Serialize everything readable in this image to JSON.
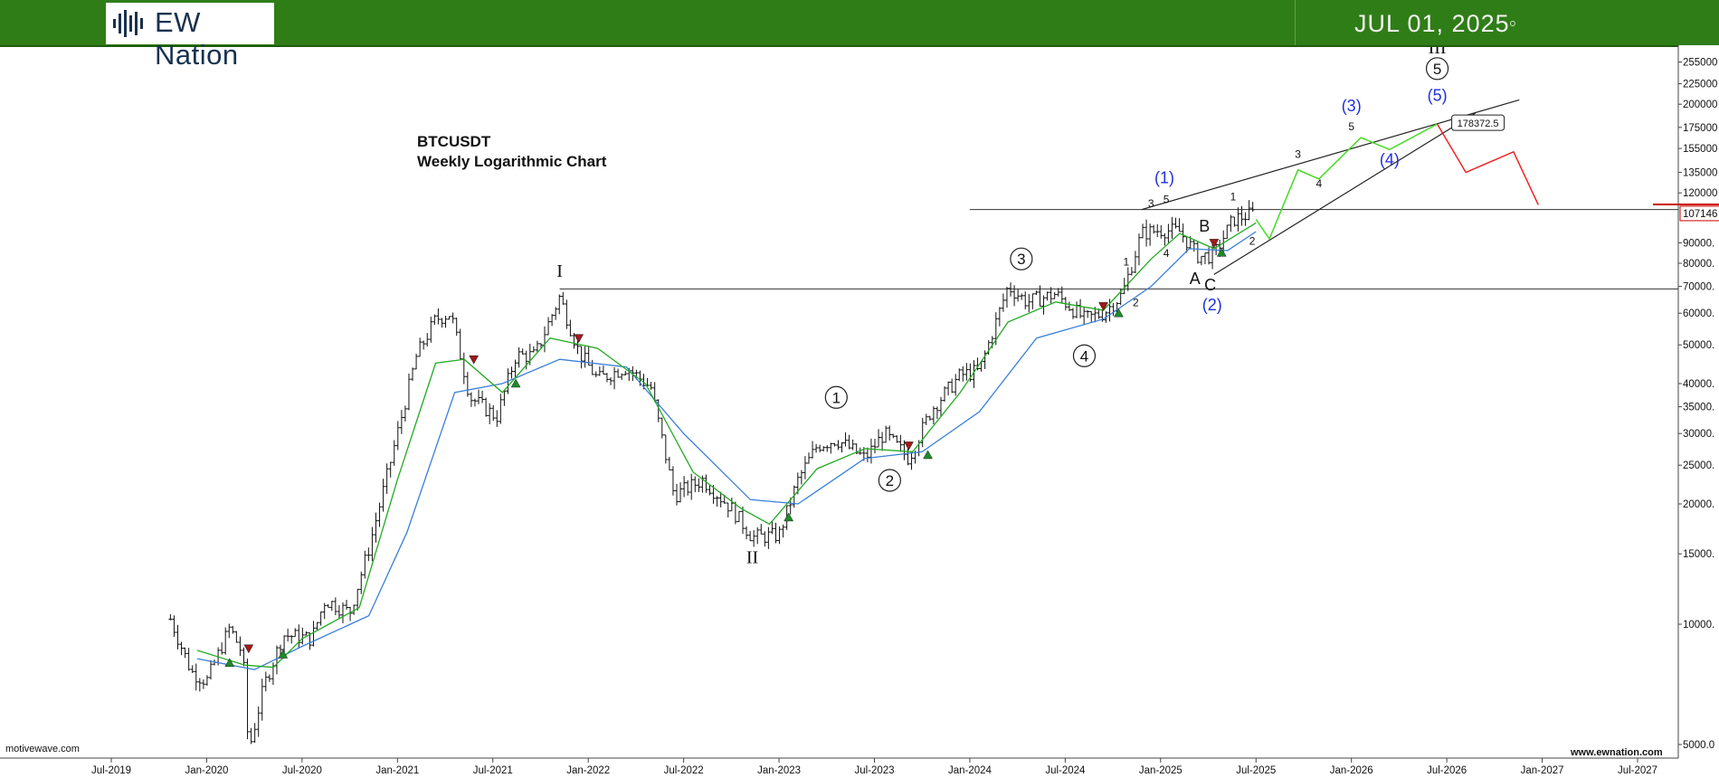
{
  "header": {
    "logo_text": "EW Nation",
    "date": "JUL 01, 2025"
  },
  "title_lines": [
    "BTCUSDT",
    "Weekly Logarithmic Chart"
  ],
  "footer": {
    "left": "motivewave.com",
    "right": "www.ewnation.com"
  },
  "colors": {
    "header_bg": "#2f7d17",
    "ema_fast": "#22aa22",
    "ema_slow": "#3a7fd9",
    "bull_projection": "#44dd22",
    "bear_projection": "#ee2222",
    "wave_label_blue": "#1f2fdc",
    "price_marker": "#cc0000"
  },
  "chart_data": {
    "type": "candlestick",
    "symbol": "BTCUSDT",
    "scale": "log",
    "x_tick_labels": [
      "Jul-2019",
      "Jan-2020",
      "Jul-2020",
      "Jan-2021",
      "Jul-2021",
      "Jan-2022",
      "Jul-2022",
      "Jan-2023",
      "Jul-2023",
      "Jan-2024",
      "Jul-2024",
      "Jan-2025",
      "Jul-2025",
      "Jan-2026",
      "Jul-2026",
      "Jan-2027",
      "Jul-2027"
    ],
    "y_tick_labels": [
      {
        "label": "5000.0",
        "value": 5000
      },
      {
        "label": "10000.",
        "value": 10000
      },
      {
        "label": "15000.",
        "value": 15000
      },
      {
        "label": "20000.",
        "value": 20000
      },
      {
        "label": "25000.",
        "value": 25000
      },
      {
        "label": "30000.",
        "value": 30000
      },
      {
        "label": "35000.",
        "value": 35000
      },
      {
        "label": "40000.",
        "value": 40000
      },
      {
        "label": "50000.",
        "value": 50000
      },
      {
        "label": "60000.",
        "value": 60000
      },
      {
        "label": "70000.",
        "value": 70000
      },
      {
        "label": "80000.",
        "value": 80000
      },
      {
        "label": "90000.",
        "value": 90000
      },
      {
        "label": "120000",
        "value": 120000
      },
      {
        "label": "135000",
        "value": 135000
      },
      {
        "label": "155000",
        "value": 155000
      },
      {
        "label": "175000",
        "value": 175000
      },
      {
        "label": "200000",
        "value": 200000
      },
      {
        "label": "225000",
        "value": 225000
      },
      {
        "label": "255000",
        "value": 255000
      }
    ],
    "current_price_label": "107146",
    "current_price": 107146,
    "target_label": "178372.5",
    "target_value": 178372.5,
    "price_path": [
      {
        "t": 2019.81,
        "p": 10300
      },
      {
        "t": 2019.92,
        "p": 7600
      },
      {
        "t": 2020.0,
        "p": 7200
      },
      {
        "t": 2020.12,
        "p": 9800
      },
      {
        "t": 2020.19,
        "p": 8400
      },
      {
        "t": 2020.22,
        "p": 4800
      },
      {
        "t": 2020.3,
        "p": 7000
      },
      {
        "t": 2020.4,
        "p": 9400
      },
      {
        "t": 2020.55,
        "p": 9200
      },
      {
        "t": 2020.62,
        "p": 11500
      },
      {
        "t": 2020.75,
        "p": 10700
      },
      {
        "t": 2020.85,
        "p": 15500
      },
      {
        "t": 2020.95,
        "p": 24000
      },
      {
        "t": 2021.1,
        "p": 47000
      },
      {
        "t": 2021.2,
        "p": 58000
      },
      {
        "t": 2021.28,
        "p": 60000
      },
      {
        "t": 2021.38,
        "p": 37000
      },
      {
        "t": 2021.52,
        "p": 33000
      },
      {
        "t": 2021.62,
        "p": 47000
      },
      {
        "t": 2021.72,
        "p": 47000
      },
      {
        "t": 2021.85,
        "p": 66000
      },
      {
        "t": 2021.95,
        "p": 48000
      },
      {
        "t": 2022.05,
        "p": 41000
      },
      {
        "t": 2022.2,
        "p": 44000
      },
      {
        "t": 2022.33,
        "p": 39000
      },
      {
        "t": 2022.45,
        "p": 21000
      },
      {
        "t": 2022.6,
        "p": 23000
      },
      {
        "t": 2022.75,
        "p": 19500
      },
      {
        "t": 2022.86,
        "p": 16500
      },
      {
        "t": 2023.0,
        "p": 16700
      },
      {
        "t": 2023.1,
        "p": 23000
      },
      {
        "t": 2023.2,
        "p": 28000
      },
      {
        "t": 2023.3,
        "p": 29000
      },
      {
        "t": 2023.45,
        "p": 26000
      },
      {
        "t": 2023.55,
        "p": 30000
      },
      {
        "t": 2023.68,
        "p": 26000
      },
      {
        "t": 2023.8,
        "p": 34500
      },
      {
        "t": 2023.95,
        "p": 42000
      },
      {
        "t": 2024.05,
        "p": 43000
      },
      {
        "t": 2024.2,
        "p": 70000
      },
      {
        "t": 2024.3,
        "p": 64000
      },
      {
        "t": 2024.45,
        "p": 67000
      },
      {
        "t": 2024.6,
        "p": 58000
      },
      {
        "t": 2024.7,
        "p": 60000
      },
      {
        "t": 2024.8,
        "p": 67000
      },
      {
        "t": 2024.9,
        "p": 95000
      },
      {
        "t": 2025.0,
        "p": 97000
      },
      {
        "t": 2025.1,
        "p": 96000
      },
      {
        "t": 2025.2,
        "p": 83000
      },
      {
        "t": 2025.28,
        "p": 84000
      },
      {
        "t": 2025.38,
        "p": 103000
      },
      {
        "t": 2025.5,
        "p": 107146
      }
    ],
    "ema_fast": [
      {
        "t": 2019.95,
        "p": 8600
      },
      {
        "t": 2020.2,
        "p": 7900
      },
      {
        "t": 2020.35,
        "p": 7800
      },
      {
        "t": 2020.5,
        "p": 9200
      },
      {
        "t": 2020.8,
        "p": 11000
      },
      {
        "t": 2021.0,
        "p": 23000
      },
      {
        "t": 2021.2,
        "p": 45000
      },
      {
        "t": 2021.35,
        "p": 46000
      },
      {
        "t": 2021.55,
        "p": 38000
      },
      {
        "t": 2021.8,
        "p": 52000
      },
      {
        "t": 2022.05,
        "p": 49000
      },
      {
        "t": 2022.3,
        "p": 40000
      },
      {
        "t": 2022.55,
        "p": 24000
      },
      {
        "t": 2022.8,
        "p": 19500
      },
      {
        "t": 2022.95,
        "p": 17800
      },
      {
        "t": 2023.2,
        "p": 24500
      },
      {
        "t": 2023.45,
        "p": 27500
      },
      {
        "t": 2023.7,
        "p": 27000
      },
      {
        "t": 2023.95,
        "p": 38000
      },
      {
        "t": 2024.2,
        "p": 57000
      },
      {
        "t": 2024.45,
        "p": 64000
      },
      {
        "t": 2024.7,
        "p": 61000
      },
      {
        "t": 2024.95,
        "p": 82000
      },
      {
        "t": 2025.1,
        "p": 95000
      },
      {
        "t": 2025.28,
        "p": 87000
      },
      {
        "t": 2025.5,
        "p": 101000
      }
    ],
    "ema_slow": [
      {
        "t": 2019.95,
        "p": 8200
      },
      {
        "t": 2020.25,
        "p": 7700
      },
      {
        "t": 2020.5,
        "p": 8800
      },
      {
        "t": 2020.85,
        "p": 10500
      },
      {
        "t": 2021.05,
        "p": 17000
      },
      {
        "t": 2021.3,
        "p": 38000
      },
      {
        "t": 2021.55,
        "p": 40000
      },
      {
        "t": 2021.85,
        "p": 46000
      },
      {
        "t": 2022.2,
        "p": 44000
      },
      {
        "t": 2022.5,
        "p": 30000
      },
      {
        "t": 2022.85,
        "p": 20500
      },
      {
        "t": 2023.1,
        "p": 20000
      },
      {
        "t": 2023.45,
        "p": 26000
      },
      {
        "t": 2023.75,
        "p": 27000
      },
      {
        "t": 2024.05,
        "p": 34000
      },
      {
        "t": 2024.35,
        "p": 52000
      },
      {
        "t": 2024.7,
        "p": 58000
      },
      {
        "t": 2024.95,
        "p": 70000
      },
      {
        "t": 2025.15,
        "p": 87000
      },
      {
        "t": 2025.35,
        "p": 86000
      },
      {
        "t": 2025.5,
        "p": 96000
      }
    ],
    "bull_projection": [
      {
        "t": 2025.5,
        "p": 103000
      },
      {
        "t": 2025.57,
        "p": 92000
      },
      {
        "t": 2025.72,
        "p": 137000
      },
      {
        "t": 2025.83,
        "p": 130000
      },
      {
        "t": 2026.05,
        "p": 165000
      },
      {
        "t": 2026.2,
        "p": 154000
      },
      {
        "t": 2026.45,
        "p": 178372.5
      }
    ],
    "bear_projection": [
      {
        "t": 2026.45,
        "p": 178372.5
      },
      {
        "t": 2026.6,
        "p": 135000
      },
      {
        "t": 2026.85,
        "p": 152000
      },
      {
        "t": 2026.98,
        "p": 112000
      }
    ],
    "horizontal_levels": [
      69000,
      109000
    ],
    "channel_lines": [
      {
        "from": {
          "t": 2024.9,
          "p": 109000
        },
        "to": {
          "t": 2026.88,
          "p": 205000
        }
      },
      {
        "from": {
          "t": 2025.28,
          "p": 75000
        },
        "to": {
          "t": 2026.65,
          "p": 190000
        }
      }
    ],
    "triangle_markers": [
      {
        "t": 2020.12,
        "p": 8000,
        "dir": "up"
      },
      {
        "t": 2020.22,
        "p": 8700,
        "dir": "down"
      },
      {
        "t": 2020.4,
        "p": 8400,
        "dir": "up"
      },
      {
        "t": 2021.4,
        "p": 46000,
        "dir": "down"
      },
      {
        "t": 2021.62,
        "p": 40000,
        "dir": "up"
      },
      {
        "t": 2021.95,
        "p": 52000,
        "dir": "down"
      },
      {
        "t": 2023.05,
        "p": 18500,
        "dir": "up"
      },
      {
        "t": 2023.68,
        "p": 28000,
        "dir": "down"
      },
      {
        "t": 2023.78,
        "p": 26500,
        "dir": "up"
      },
      {
        "t": 2024.7,
        "p": 62500,
        "dir": "down"
      },
      {
        "t": 2024.78,
        "p": 60000,
        "dir": "up"
      },
      {
        "t": 2025.28,
        "p": 90000,
        "dir": "down"
      },
      {
        "t": 2025.32,
        "p": 85000,
        "dir": "up"
      }
    ],
    "wave_labels": [
      {
        "text": "I",
        "t": 2021.85,
        "p": 74000,
        "style": "roman"
      },
      {
        "text": "II",
        "t": 2022.86,
        "p": 14200,
        "style": "roman"
      },
      {
        "text": "III",
        "t": 2026.45,
        "p": 268000,
        "style": "roman"
      },
      {
        "text": "1",
        "t": 2023.3,
        "p": 35800,
        "style": "circle"
      },
      {
        "text": "2",
        "t": 2023.58,
        "p": 22200,
        "style": "circle"
      },
      {
        "text": "3",
        "t": 2024.27,
        "p": 79500,
        "style": "circle"
      },
      {
        "text": "4",
        "t": 2024.6,
        "p": 45500,
        "style": "circle"
      },
      {
        "text": "5",
        "t": 2026.45,
        "p": 238000,
        "style": "circle"
      },
      {
        "text": "(1)",
        "t": 2025.02,
        "p": 127000,
        "style": "blue"
      },
      {
        "text": "(2)",
        "t": 2025.27,
        "p": 61000,
        "style": "blue"
      },
      {
        "text": "(3)",
        "t": 2026.0,
        "p": 192000,
        "style": "blue"
      },
      {
        "text": "(4)",
        "t": 2026.2,
        "p": 141000,
        "style": "blue"
      },
      {
        "text": "(5)",
        "t": 2026.45,
        "p": 204000,
        "style": "blue"
      },
      {
        "text": "3",
        "t": 2024.95,
        "p": 110500,
        "style": "small"
      },
      {
        "text": "5",
        "t": 2025.03,
        "p": 113000,
        "style": "small"
      },
      {
        "text": "1",
        "t": 2024.82,
        "p": 79000,
        "style": "small"
      },
      {
        "text": "2",
        "t": 2024.87,
        "p": 62500,
        "style": "small"
      },
      {
        "text": "4",
        "t": 2025.03,
        "p": 83000,
        "style": "small"
      },
      {
        "text": "1",
        "t": 2025.38,
        "p": 115000,
        "style": "small"
      },
      {
        "text": "2",
        "t": 2025.48,
        "p": 89000,
        "style": "small"
      },
      {
        "text": "3",
        "t": 2025.72,
        "p": 147000,
        "style": "small"
      },
      {
        "text": "5",
        "t": 2026.0,
        "p": 172000,
        "style": "small"
      },
      {
        "text": "4",
        "t": 2025.83,
        "p": 124000,
        "style": "small"
      },
      {
        "text": "A",
        "t": 2025.18,
        "p": 71000,
        "style": "letter"
      },
      {
        "text": "C",
        "t": 2025.26,
        "p": 68500,
        "style": "letter"
      },
      {
        "text": "B",
        "t": 2025.23,
        "p": 96000,
        "style": "letter"
      }
    ]
  }
}
